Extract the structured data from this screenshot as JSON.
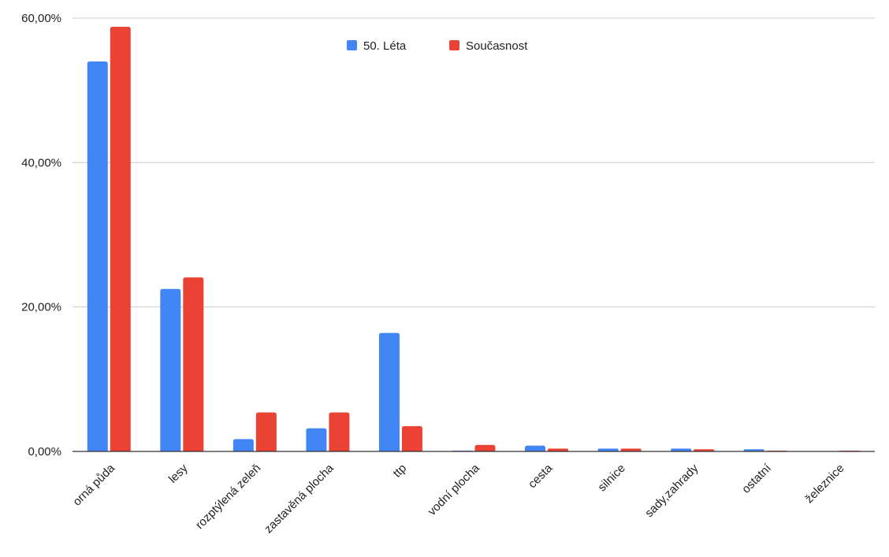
{
  "chart_data": {
    "type": "bar",
    "categories": [
      "orná půda",
      "lesy",
      "rozptýlená zeleň",
      "zastavěná plocha",
      "ttp",
      "vodní plocha",
      "cesta",
      "silnice",
      "sady,zahrady",
      "ostatní",
      "železnice"
    ],
    "series": [
      {
        "name": "50. Léta",
        "color": "#4285f4",
        "values": [
          54.0,
          22.5,
          1.7,
          3.2,
          16.4,
          0.1,
          0.8,
          0.4,
          0.4,
          0.3,
          0.0
        ]
      },
      {
        "name": "Současnost",
        "color": "#ea4335",
        "values": [
          58.8,
          24.1,
          5.4,
          5.4,
          3.5,
          0.9,
          0.4,
          0.4,
          0.3,
          0.1,
          0.1
        ]
      }
    ],
    "title": "",
    "xlabel": "",
    "ylabel": "",
    "ylim": [
      0,
      60
    ],
    "yticks": [
      0,
      20,
      40,
      60
    ],
    "ytick_labels": [
      "0,00%",
      "20,00%",
      "40,00%",
      "60,00%"
    ],
    "grid": true,
    "legend_position": "top-center"
  }
}
